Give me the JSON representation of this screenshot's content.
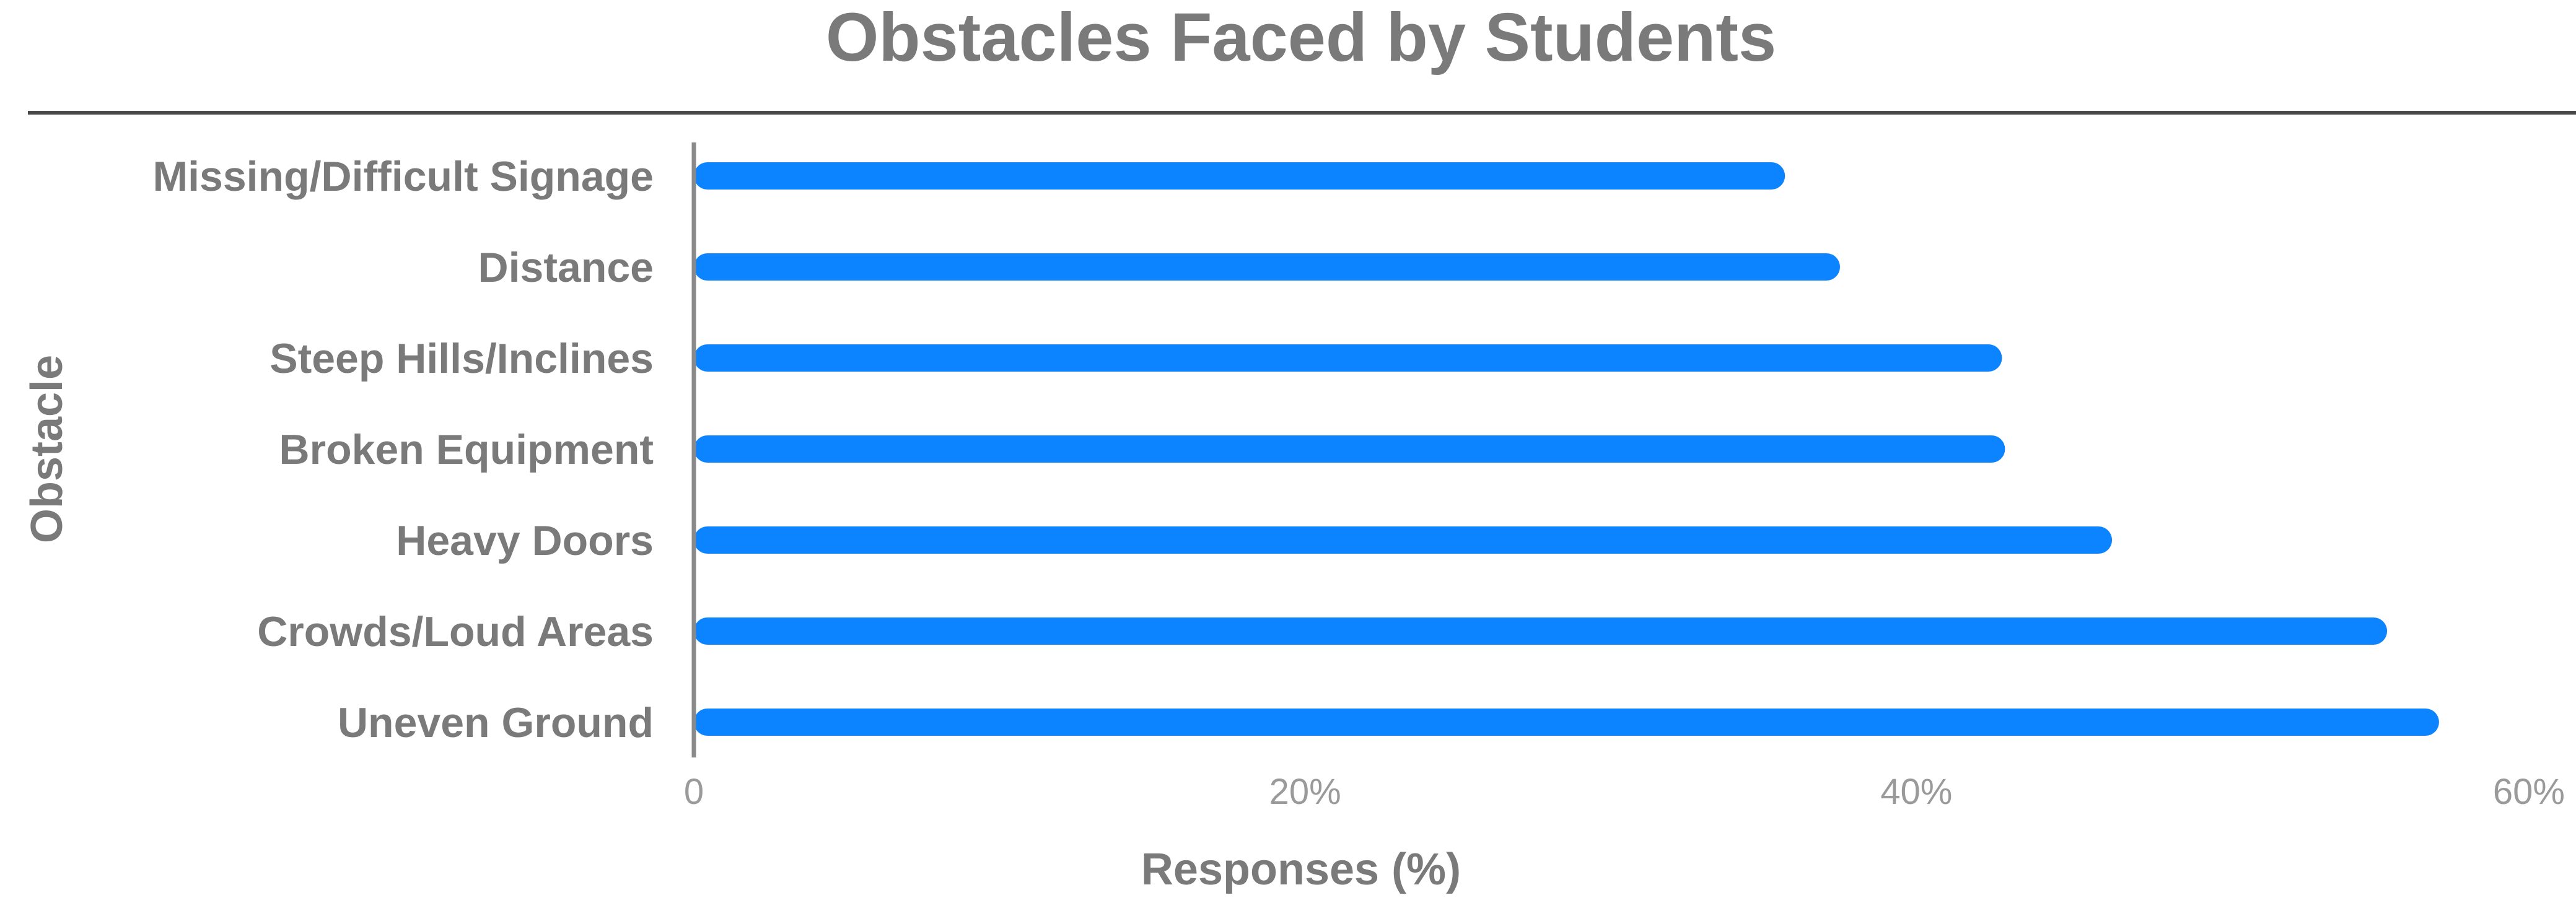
{
  "chart_data": {
    "type": "bar",
    "orientation": "horizontal",
    "title": "Obstacles Faced by Students",
    "xlabel": "Responses (%)",
    "ylabel": "Obstacle",
    "categories": [
      "Missing/Difficult Signage",
      "Distance",
      "Steep Hills/Inclines",
      "Broken Equipment",
      "Heavy Doors",
      "Crowds/Loud Areas",
      "Uneven Ground"
    ],
    "values": [
      35.7,
      37.5,
      42.8,
      42.9,
      46.4,
      55.4,
      57.1
    ],
    "xlim": [
      0,
      60
    ],
    "xticks": [
      0,
      20,
      40,
      60
    ],
    "xtick_labels": [
      "0",
      "20%",
      "40%",
      "60%"
    ],
    "grid": false,
    "legend": "none",
    "colors": {
      "bar": "#0d84ff",
      "text": "#7a7a7a",
      "rule": "#4a4a4a",
      "axis": "#8a8a8a"
    }
  }
}
